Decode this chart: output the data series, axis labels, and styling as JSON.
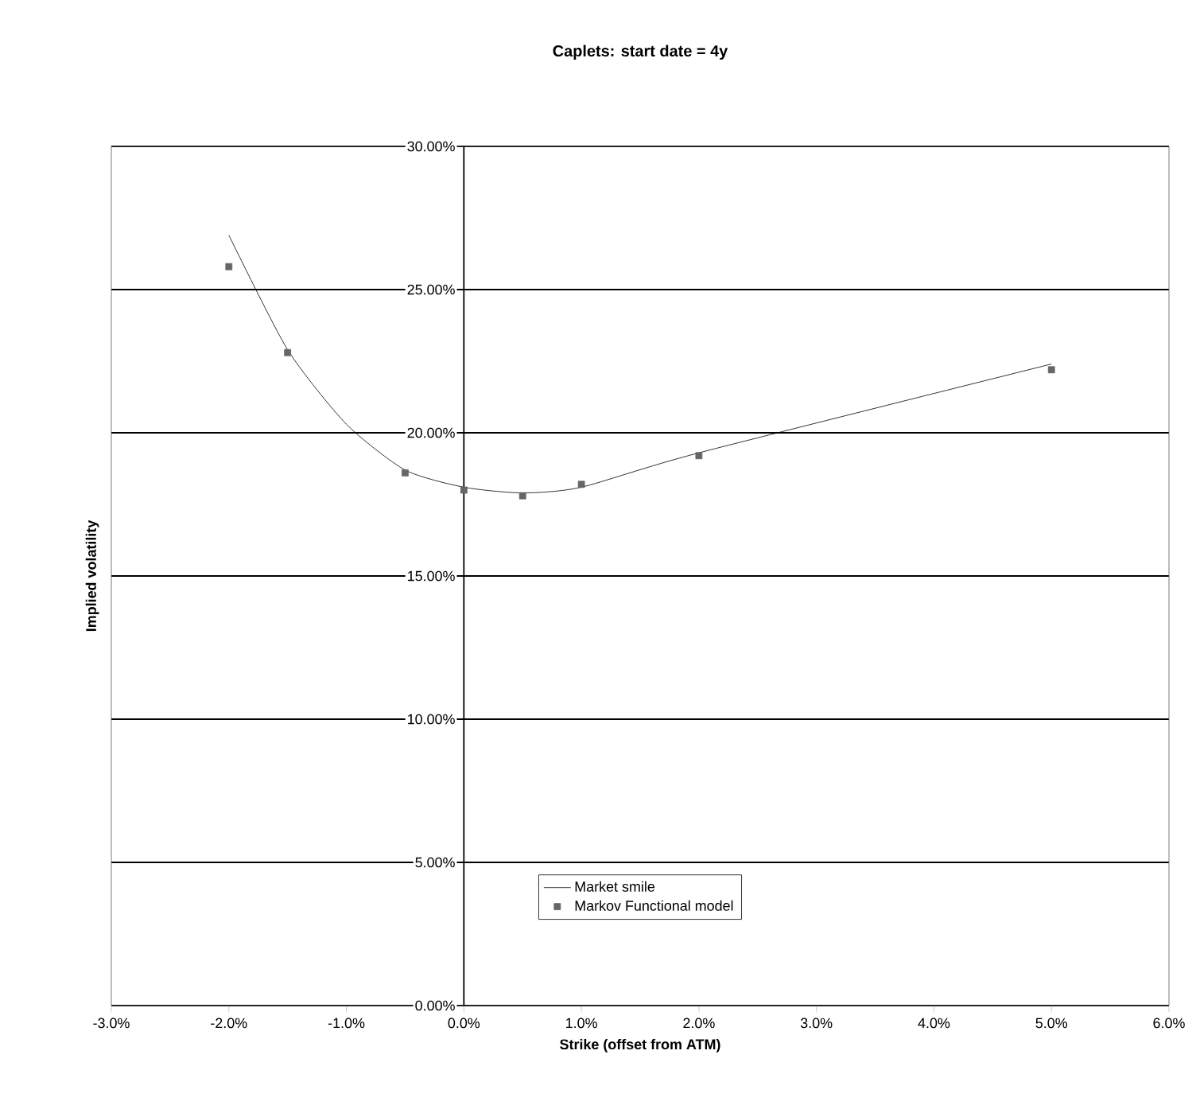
{
  "chart_data": {
    "type": "line",
    "title": "Caplets: start date = 4y",
    "xlabel": "Strike (offset from ATM)",
    "ylabel": "Implied volatility",
    "xlim": [
      -3,
      6
    ],
    "ylim": [
      0,
      30
    ],
    "xticks": [
      {
        "value": -3,
        "label": "-3.0%"
      },
      {
        "value": -2,
        "label": "-2.0%"
      },
      {
        "value": -1,
        "label": "-1.0%"
      },
      {
        "value": 0,
        "label": "0.0%"
      },
      {
        "value": 1,
        "label": "1.0%"
      },
      {
        "value": 2,
        "label": "2.0%"
      },
      {
        "value": 3,
        "label": "3.0%"
      },
      {
        "value": 4,
        "label": "4.0%"
      },
      {
        "value": 5,
        "label": "5.0%"
      },
      {
        "value": 6,
        "label": "6.0%"
      }
    ],
    "yticks": [
      {
        "value": 0,
        "label": "0.00%"
      },
      {
        "value": 5,
        "label": "5.00%"
      },
      {
        "value": 10,
        "label": "10.00%"
      },
      {
        "value": 15,
        "label": "15.00%"
      },
      {
        "value": 20,
        "label": "20.00%"
      },
      {
        "value": 25,
        "label": "25.00%"
      },
      {
        "value": 30,
        "label": "30.00%"
      }
    ],
    "grid": "y",
    "legend": "bottom",
    "series": [
      {
        "name": "Market smile",
        "color": "#000000",
        "marker": "none",
        "x": [
          -2,
          -1.5,
          -1,
          -0.5,
          0,
          0.5,
          1,
          2,
          5
        ],
        "values": [
          26.9,
          22.9,
          20.3,
          18.7,
          18.1,
          17.9,
          18.1,
          19.3,
          22.4
        ]
      },
      {
        "name": "Markov Functional model",
        "type": "scatter",
        "color": "#666666",
        "marker": "square",
        "x": [
          -2,
          -1.5,
          -0.5,
          0,
          0.5,
          1,
          2,
          5
        ],
        "values": [
          25.8,
          22.8,
          18.6,
          18.0,
          17.8,
          18.2,
          19.2,
          22.2
        ]
      }
    ]
  }
}
